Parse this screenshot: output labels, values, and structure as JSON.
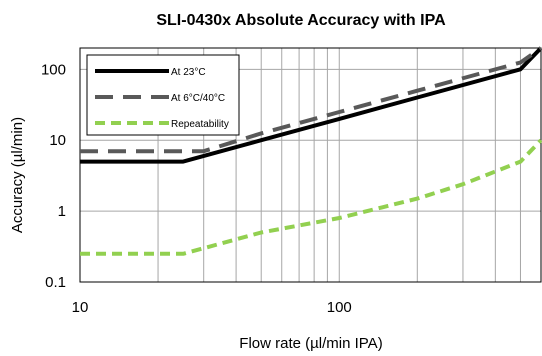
{
  "chart_data": {
    "type": "line",
    "title": "SLI-0430x Absolute Accuracy with IPA",
    "xlabel": "Flow rate (µl/min IPA)",
    "ylabel": "Accuracy (µl/min)",
    "x_scale": "log",
    "y_scale": "log",
    "xlim": [
      10,
      600
    ],
    "ylim": [
      0.1,
      200
    ],
    "x_ticks": [
      {
        "value": 10,
        "label": "10"
      },
      {
        "value": 100,
        "label": "100"
      }
    ],
    "y_ticks": [
      {
        "value": 0.1,
        "label": "0.1"
      },
      {
        "value": 1,
        "label": "1"
      },
      {
        "value": 10,
        "label": "10"
      },
      {
        "value": 100,
        "label": "100"
      }
    ],
    "grid": true,
    "legend_position": "top-left",
    "series": [
      {
        "name": "At 23°C",
        "color": "#000000",
        "style": "solid",
        "x": [
          10,
          25,
          50,
          100,
          200,
          500,
          600
        ],
        "y": [
          5,
          5,
          10,
          20,
          40,
          100,
          200
        ]
      },
      {
        "name": "At 6°C/40°C",
        "color": "#595959",
        "style": "dashed",
        "x": [
          10,
          30,
          50,
          100,
          200,
          500,
          600
        ],
        "y": [
          7,
          7,
          12.5,
          25,
          50,
          125,
          200
        ]
      },
      {
        "name": "Repeatability",
        "color": "#92d050",
        "style": "dashed",
        "x": [
          10,
          25,
          30,
          50,
          100,
          200,
          300,
          500,
          600
        ],
        "y": [
          0.25,
          0.25,
          0.3,
          0.5,
          0.8,
          1.5,
          2.4,
          5,
          10
        ]
      }
    ]
  }
}
